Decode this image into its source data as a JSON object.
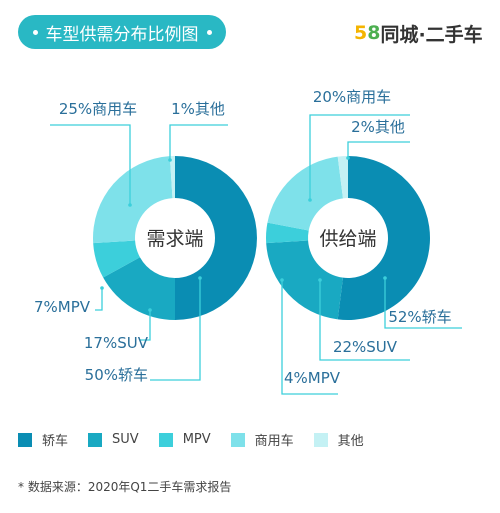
{
  "header": {
    "title": "车型供需分布比例图"
  },
  "logo": {
    "num5": "5",
    "num8": "8",
    "text": "同城·二手车"
  },
  "colors": {
    "accent": "#29b8c4"
  },
  "chart_data": {
    "type": "pie",
    "categories": [
      "轿车",
      "SUV",
      "MPV",
      "商用车",
      "其他"
    ],
    "colors": [
      "#0a8db3",
      "#19a9c2",
      "#3ccfdb",
      "#7ee1ea",
      "#c4f1f4"
    ],
    "series": [
      {
        "name": "需求端",
        "values": [
          50,
          17,
          7,
          25,
          1
        ],
        "labels": [
          "50%轿车",
          "17%SUV",
          "7%MPV",
          "25%商用车",
          "1%其他"
        ]
      },
      {
        "name": "供给端",
        "values": [
          52,
          22,
          4,
          20,
          2
        ],
        "labels": [
          "52%轿车",
          "22%SUV",
          "4%MPV",
          "20%商用车",
          "2%其他"
        ]
      }
    ]
  },
  "footnote": "* 数据来源：2020年Q1二手车需求报告"
}
